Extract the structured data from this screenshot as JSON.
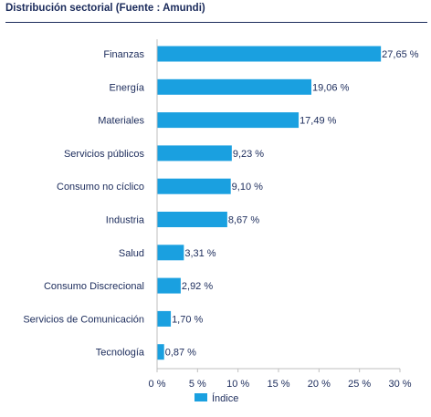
{
  "title": "Distribución sectorial (Fuente : Amundi)",
  "colors": {
    "bar": "#1aa0e0",
    "text": "#1b2b5b",
    "axis": "#bfbfbf"
  },
  "chart_data": {
    "type": "bar",
    "orientation": "horizontal",
    "categories": [
      "Finanzas",
      "Energía",
      "Materiales",
      "Servicios públicos",
      "Consumo no cíclico",
      "Industria",
      "Salud",
      "Consumo Discrecional",
      "Servicios de Comunicación",
      "Tecnología"
    ],
    "series": [
      {
        "name": "Índice",
        "values": [
          27.65,
          19.06,
          17.49,
          9.23,
          9.1,
          8.67,
          3.31,
          2.92,
          1.7,
          0.87
        ],
        "value_labels": [
          "27,65 %",
          "19,06 %",
          "17,49 %",
          "9,23 %",
          "9,10 %",
          "8,67 %",
          "3,31 %",
          "2,92 %",
          "1,70 %",
          "0,87 %"
        ]
      }
    ],
    "xlim": [
      0,
      30
    ],
    "xticks": [
      0,
      5,
      10,
      15,
      20,
      25,
      30
    ],
    "xtick_labels": [
      "0 %",
      "5 %",
      "10 %",
      "15 %",
      "20 %",
      "25 %",
      "30 %"
    ],
    "grid": false,
    "legend": "bottom"
  }
}
